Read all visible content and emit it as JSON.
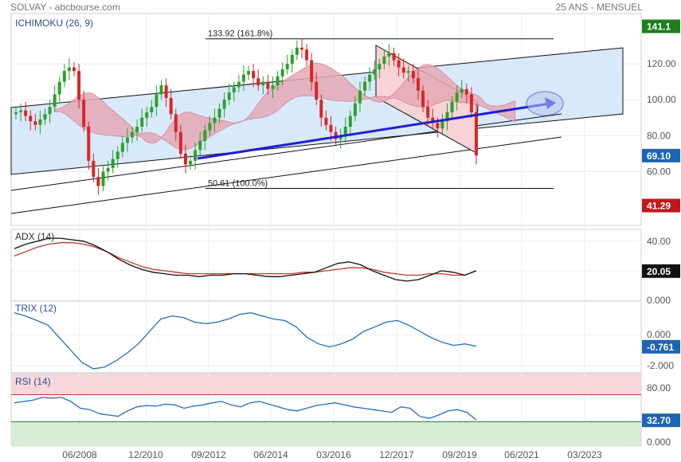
{
  "header": {
    "title": "SOLVAY - abcbourse.com",
    "period": "25 ANS - MENSUEL"
  },
  "colors": {
    "up": "#2ca02c",
    "down": "#d62728",
    "trend": "#1f1fd0",
    "cloud": "#e6a9b6",
    "channel": "#d8e9fb",
    "wedge": "#f7d2d7",
    "adx": "#111111",
    "adx_signal": "#c0392b",
    "line_blue": "#1f6fbf",
    "rsi_over": "#f8d7da",
    "rsi_under": "#d5ecd5"
  },
  "chart_data": [
    {
      "type": "candlestick",
      "title": "ICHIMOKU (26, 9)",
      "x_ticks": [
        "06/2008",
        "12/2010",
        "09/2012",
        "06/2014",
        "03/2016",
        "12/2017",
        "09/2019",
        "06/2021",
        "03/2023"
      ],
      "y_ticks": [
        "120.00",
        "100.00",
        "80.00",
        "60.00"
      ],
      "ylim": [
        30,
        148
      ],
      "badges": [
        {
          "label": "141.1",
          "value": 141.1,
          "color": "#1e7e1e"
        },
        {
          "label": "69.10",
          "value": 69.1,
          "color": "#1e64b4"
        },
        {
          "label": "41.29",
          "value": 41.29,
          "color": "#c0171d"
        }
      ],
      "levels": [
        {
          "value": 133.92,
          "label": "133.92  (161.8%)"
        },
        {
          "value": 50.61,
          "label": "50.61  (100.0%)"
        }
      ],
      "series": [
        {
          "name": "close",
          "values": [
            93,
            94,
            91,
            88,
            86,
            89,
            92,
            96,
            103,
            110,
            116,
            118,
            116,
            100,
            85,
            66,
            57,
            52,
            60,
            62,
            67,
            71,
            76,
            79,
            82,
            85,
            90,
            93,
            96,
            103,
            108,
            101,
            92,
            82,
            70,
            64,
            66,
            72,
            77,
            83,
            87,
            90,
            95,
            100,
            104,
            107,
            110,
            114,
            116,
            112,
            108,
            110,
            106,
            108,
            113,
            117,
            120,
            125,
            129,
            128,
            122,
            110,
            100,
            90,
            86,
            82,
            78,
            80,
            85,
            91,
            98,
            105,
            110,
            114,
            117,
            120,
            124,
            126,
            122,
            118,
            115,
            116,
            112,
            105,
            96,
            90,
            87,
            84,
            88,
            93,
            99,
            104,
            106,
            103,
            93,
            69
          ]
        }
      ]
    },
    {
      "type": "line",
      "title": "ADX (14)",
      "y_ticks": [
        "40.00",
        "20.00",
        "0.000"
      ],
      "badge": {
        "label": "20.05",
        "value": 20.05,
        "color": "#111111"
      },
      "series": [
        {
          "name": "adx",
          "values": [
            35,
            38,
            40,
            42,
            42,
            41,
            40,
            37,
            33,
            28,
            24,
            21,
            19,
            18,
            17,
            17,
            16,
            17,
            17,
            18,
            18,
            17,
            16,
            16,
            17,
            18,
            19,
            22,
            25,
            26,
            24,
            20,
            17,
            14,
            13,
            14,
            17,
            20,
            19,
            17,
            20
          ]
        },
        {
          "name": "signal",
          "values": [
            30,
            33,
            36,
            38,
            39,
            39,
            38,
            36,
            33,
            29,
            26,
            23,
            21,
            20,
            19,
            18,
            18,
            18,
            18,
            18,
            18,
            18,
            18,
            18,
            18,
            19,
            19,
            20,
            21,
            22,
            22,
            21,
            19,
            18,
            17,
            17,
            18,
            18,
            17,
            17,
            20
          ]
        }
      ]
    },
    {
      "type": "line",
      "title": "TRIX (12)",
      "y_ticks": [
        "0.000",
        "-2.000"
      ],
      "badge": {
        "label": "-0.761",
        "value": -0.761,
        "color": "#1e64b4"
      },
      "series": [
        {
          "name": "trix",
          "values": [
            1.4,
            1.2,
            0.9,
            0.6,
            -0.2,
            -1.0,
            -1.8,
            -2.2,
            -2.1,
            -1.7,
            -1.2,
            -0.6,
            0.2,
            1.0,
            1.2,
            1.1,
            0.8,
            0.7,
            0.8,
            1.0,
            1.3,
            1.4,
            1.2,
            1.0,
            0.9,
            0.5,
            -0.2,
            -0.6,
            -0.8,
            -0.6,
            -0.3,
            0.2,
            0.5,
            0.8,
            0.9,
            0.6,
            0.2,
            -0.2,
            -0.5,
            -0.7,
            -0.6,
            -0.76
          ]
        }
      ]
    },
    {
      "type": "line",
      "title": "RSI (14)",
      "y_ticks": [
        "80.00",
        "0.000"
      ],
      "badge": {
        "label": "32.70",
        "value": 32.7,
        "color": "#1e64b4"
      },
      "series": [
        {
          "name": "rsi",
          "values": [
            58,
            60,
            62,
            66,
            65,
            66,
            60,
            50,
            48,
            42,
            40,
            38,
            46,
            52,
            54,
            53,
            56,
            55,
            50,
            53,
            55,
            58,
            60,
            55,
            52,
            58,
            60,
            56,
            52,
            48,
            46,
            50,
            54,
            56,
            58,
            55,
            52,
            50,
            48,
            46,
            44,
            52,
            50,
            38,
            35,
            40,
            46,
            48,
            44,
            32.7
          ]
        }
      ]
    }
  ]
}
